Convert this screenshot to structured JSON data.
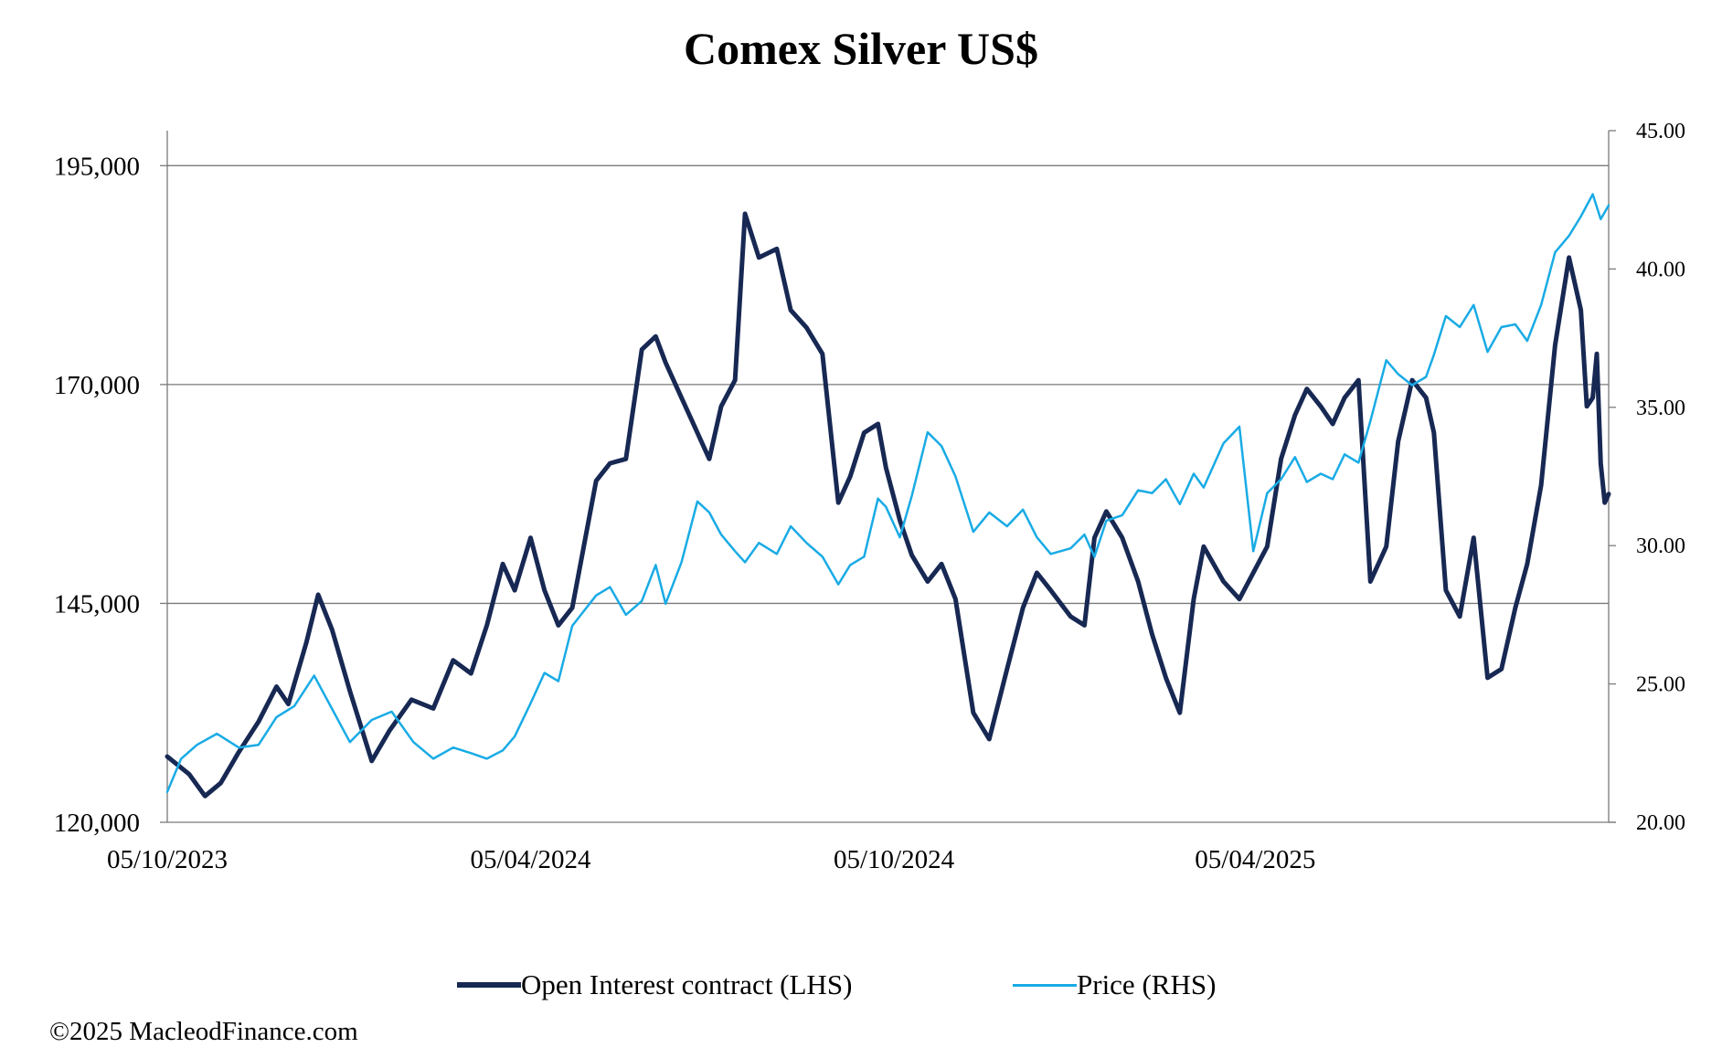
{
  "title": "Comex Silver US$",
  "copyright": "©2025 MacleodFinance.com",
  "colors": {
    "oi": "#172853",
    "price": "#19ABE5",
    "grid": "#7a7a7a"
  },
  "chart_data": {
    "type": "line",
    "title": "Comex Silver US$",
    "x_range": [
      "2023-10-05",
      "2025-09-30"
    ],
    "x_tick_labels": [
      "05/10/2023",
      "05/04/2024",
      "05/10/2024",
      "05/04/2025"
    ],
    "x_tick_dates": [
      "2023-10-05",
      "2024-04-05",
      "2024-10-05",
      "2025-04-05"
    ],
    "y_left": {
      "min": 120000,
      "max": 199000,
      "ticks": [
        120000,
        145000,
        170000,
        195000
      ],
      "tick_labels": [
        "120,000",
        "145,000",
        "170,000",
        "195,000"
      ],
      "gridlines": [
        145000,
        170000,
        195000
      ]
    },
    "y_right": {
      "min": 20,
      "max": 45,
      "ticks": [
        20,
        25,
        30,
        35,
        40,
        45
      ],
      "tick_labels": [
        "20.00",
        "25.00",
        "30.00",
        "35.00",
        "40.00",
        "45.00"
      ]
    },
    "legend_position": "bottom",
    "series": [
      {
        "name": "Open Interest contract (LHS)",
        "axis": "left",
        "points": [
          [
            "2023-10-05",
            127500
          ],
          [
            "2023-10-16",
            125500
          ],
          [
            "2023-10-24",
            123000
          ],
          [
            "2023-11-01",
            124500
          ],
          [
            "2023-11-10",
            128000
          ],
          [
            "2023-11-20",
            131500
          ],
          [
            "2023-11-29",
            135500
          ],
          [
            "2023-12-05",
            133500
          ],
          [
            "2023-12-14",
            140500
          ],
          [
            "2023-12-20",
            146000
          ],
          [
            "2023-12-27",
            142000
          ],
          [
            "2024-01-05",
            135000
          ],
          [
            "2024-01-16",
            127000
          ],
          [
            "2024-01-25",
            130500
          ],
          [
            "2024-02-05",
            134000
          ],
          [
            "2024-02-16",
            133000
          ],
          [
            "2024-02-26",
            138500
          ],
          [
            "2024-03-06",
            137000
          ],
          [
            "2024-03-14",
            142500
          ],
          [
            "2024-03-22",
            149500
          ],
          [
            "2024-03-28",
            146500
          ],
          [
            "2024-04-05",
            152500
          ],
          [
            "2024-04-12",
            146500
          ],
          [
            "2024-04-19",
            142500
          ],
          [
            "2024-04-26",
            144500
          ],
          [
            "2024-05-08",
            159000
          ],
          [
            "2024-05-15",
            161000
          ],
          [
            "2024-05-23",
            161500
          ],
          [
            "2024-05-31",
            174000
          ],
          [
            "2024-06-07",
            175500
          ],
          [
            "2024-06-12",
            172500
          ],
          [
            "2024-06-20",
            168500
          ],
          [
            "2024-06-28",
            164500
          ],
          [
            "2024-07-04",
            161500
          ],
          [
            "2024-07-10",
            167500
          ],
          [
            "2024-07-17",
            170500
          ],
          [
            "2024-07-22",
            189500
          ],
          [
            "2024-07-29",
            184500
          ],
          [
            "2024-08-07",
            185500
          ],
          [
            "2024-08-14",
            178500
          ],
          [
            "2024-08-22",
            176500
          ],
          [
            "2024-08-30",
            173500
          ],
          [
            "2024-09-07",
            156500
          ],
          [
            "2024-09-13",
            159500
          ],
          [
            "2024-09-20",
            164500
          ],
          [
            "2024-09-27",
            165500
          ],
          [
            "2024-10-01",
            160500
          ],
          [
            "2024-10-08",
            154500
          ],
          [
            "2024-10-14",
            150500
          ],
          [
            "2024-10-22",
            147500
          ],
          [
            "2024-10-29",
            149500
          ],
          [
            "2024-11-05",
            145500
          ],
          [
            "2024-11-14",
            132500
          ],
          [
            "2024-11-22",
            129500
          ],
          [
            "2024-12-01",
            137500
          ],
          [
            "2024-12-09",
            144500
          ],
          [
            "2024-12-16",
            148500
          ],
          [
            "2024-12-23",
            146500
          ],
          [
            "2025-01-02",
            143500
          ],
          [
            "2025-01-09",
            142500
          ],
          [
            "2025-01-14",
            152500
          ],
          [
            "2025-01-20",
            155500
          ],
          [
            "2025-01-28",
            152500
          ],
          [
            "2025-02-05",
            147500
          ],
          [
            "2025-02-12",
            141500
          ],
          [
            "2025-02-19",
            136500
          ],
          [
            "2025-02-26",
            132500
          ],
          [
            "2025-03-05",
            145500
          ],
          [
            "2025-03-10",
            151500
          ],
          [
            "2025-03-20",
            147500
          ],
          [
            "2025-03-28",
            145500
          ],
          [
            "2025-04-04",
            148500
          ],
          [
            "2025-04-11",
            151500
          ],
          [
            "2025-04-18",
            161500
          ],
          [
            "2025-04-25",
            166500
          ],
          [
            "2025-05-01",
            169500
          ],
          [
            "2025-05-08",
            167500
          ],
          [
            "2025-05-14",
            165500
          ],
          [
            "2025-05-20",
            168500
          ],
          [
            "2025-05-27",
            170500
          ],
          [
            "2025-06-02",
            147500
          ],
          [
            "2025-06-10",
            151500
          ],
          [
            "2025-06-16",
            163500
          ],
          [
            "2025-06-23",
            170500
          ],
          [
            "2025-06-30",
            168500
          ],
          [
            "2025-07-04",
            164500
          ],
          [
            "2025-07-10",
            146500
          ],
          [
            "2025-07-17",
            143500
          ],
          [
            "2025-07-24",
            152500
          ],
          [
            "2025-07-31",
            136500
          ],
          [
            "2025-08-07",
            137500
          ],
          [
            "2025-08-14",
            144500
          ],
          [
            "2025-08-20",
            149500
          ],
          [
            "2025-08-27",
            158500
          ],
          [
            "2025-09-03",
            174500
          ],
          [
            "2025-09-10",
            184500
          ],
          [
            "2025-09-16",
            178500
          ],
          [
            "2025-09-19",
            167500
          ],
          [
            "2025-09-22",
            168500
          ],
          [
            "2025-09-24",
            173500
          ],
          [
            "2025-09-26",
            161000
          ],
          [
            "2025-09-28",
            156500
          ],
          [
            "2025-09-30",
            157500
          ]
        ]
      },
      {
        "name": "Price (RHS)",
        "axis": "right",
        "points": [
          [
            "2023-10-05",
            21.1
          ],
          [
            "2023-10-12",
            22.3
          ],
          [
            "2023-10-20",
            22.8
          ],
          [
            "2023-10-30",
            23.2
          ],
          [
            "2023-11-10",
            22.7
          ],
          [
            "2023-11-20",
            22.8
          ],
          [
            "2023-11-29",
            23.8
          ],
          [
            "2023-12-08",
            24.2
          ],
          [
            "2023-12-18",
            25.3
          ],
          [
            "2023-12-27",
            24.1
          ],
          [
            "2024-01-05",
            22.9
          ],
          [
            "2024-01-16",
            23.7
          ],
          [
            "2024-01-26",
            24.0
          ],
          [
            "2024-02-06",
            22.9
          ],
          [
            "2024-02-16",
            22.3
          ],
          [
            "2024-02-26",
            22.7
          ],
          [
            "2024-03-06",
            22.5
          ],
          [
            "2024-03-14",
            22.3
          ],
          [
            "2024-03-22",
            22.6
          ],
          [
            "2024-03-28",
            23.1
          ],
          [
            "2024-04-05",
            24.3
          ],
          [
            "2024-04-12",
            25.4
          ],
          [
            "2024-04-19",
            25.1
          ],
          [
            "2024-04-26",
            27.1
          ],
          [
            "2024-05-08",
            28.2
          ],
          [
            "2024-05-15",
            28.5
          ],
          [
            "2024-05-23",
            27.5
          ],
          [
            "2024-05-31",
            28.0
          ],
          [
            "2024-06-07",
            29.3
          ],
          [
            "2024-06-12",
            27.9
          ],
          [
            "2024-06-20",
            29.4
          ],
          [
            "2024-06-28",
            31.6
          ],
          [
            "2024-07-04",
            31.2
          ],
          [
            "2024-07-10",
            30.4
          ],
          [
            "2024-07-17",
            29.8
          ],
          [
            "2024-07-22",
            29.4
          ],
          [
            "2024-07-29",
            30.1
          ],
          [
            "2024-08-07",
            29.7
          ],
          [
            "2024-08-14",
            30.7
          ],
          [
            "2024-08-22",
            30.1
          ],
          [
            "2024-08-30",
            29.6
          ],
          [
            "2024-09-07",
            28.6
          ],
          [
            "2024-09-13",
            29.3
          ],
          [
            "2024-09-20",
            29.6
          ],
          [
            "2024-09-27",
            31.7
          ],
          [
            "2024-10-01",
            31.4
          ],
          [
            "2024-10-08",
            30.3
          ],
          [
            "2024-10-14",
            31.8
          ],
          [
            "2024-10-22",
            34.1
          ],
          [
            "2024-10-29",
            33.6
          ],
          [
            "2024-11-05",
            32.5
          ],
          [
            "2024-11-14",
            30.5
          ],
          [
            "2024-11-22",
            31.2
          ],
          [
            "2024-12-01",
            30.7
          ],
          [
            "2024-12-09",
            31.3
          ],
          [
            "2024-12-16",
            30.3
          ],
          [
            "2024-12-23",
            29.7
          ],
          [
            "2025-01-02",
            29.9
          ],
          [
            "2025-01-09",
            30.4
          ],
          [
            "2025-01-14",
            29.6
          ],
          [
            "2025-01-20",
            30.9
          ],
          [
            "2025-01-28",
            31.1
          ],
          [
            "2025-02-05",
            32.0
          ],
          [
            "2025-02-12",
            31.9
          ],
          [
            "2025-02-19",
            32.4
          ],
          [
            "2025-02-26",
            31.5
          ],
          [
            "2025-03-05",
            32.6
          ],
          [
            "2025-03-10",
            32.1
          ],
          [
            "2025-03-20",
            33.7
          ],
          [
            "2025-03-28",
            34.3
          ],
          [
            "2025-04-04",
            29.8
          ],
          [
            "2025-04-11",
            31.9
          ],
          [
            "2025-04-18",
            32.4
          ],
          [
            "2025-04-25",
            33.2
          ],
          [
            "2025-05-01",
            32.3
          ],
          [
            "2025-05-08",
            32.6
          ],
          [
            "2025-05-14",
            32.4
          ],
          [
            "2025-05-20",
            33.3
          ],
          [
            "2025-05-27",
            33.0
          ],
          [
            "2025-06-02",
            34.5
          ],
          [
            "2025-06-10",
            36.7
          ],
          [
            "2025-06-16",
            36.2
          ],
          [
            "2025-06-23",
            35.8
          ],
          [
            "2025-06-30",
            36.1
          ],
          [
            "2025-07-04",
            36.9
          ],
          [
            "2025-07-10",
            38.3
          ],
          [
            "2025-07-17",
            37.9
          ],
          [
            "2025-07-24",
            38.7
          ],
          [
            "2025-07-31",
            37.0
          ],
          [
            "2025-08-07",
            37.9
          ],
          [
            "2025-08-14",
            38.0
          ],
          [
            "2025-08-20",
            37.4
          ],
          [
            "2025-08-27",
            38.7
          ],
          [
            "2025-09-03",
            40.6
          ],
          [
            "2025-09-10",
            41.2
          ],
          [
            "2025-09-16",
            41.9
          ],
          [
            "2025-09-22",
            42.7
          ],
          [
            "2025-09-26",
            41.8
          ],
          [
            "2025-09-30",
            42.3
          ]
        ]
      }
    ]
  }
}
